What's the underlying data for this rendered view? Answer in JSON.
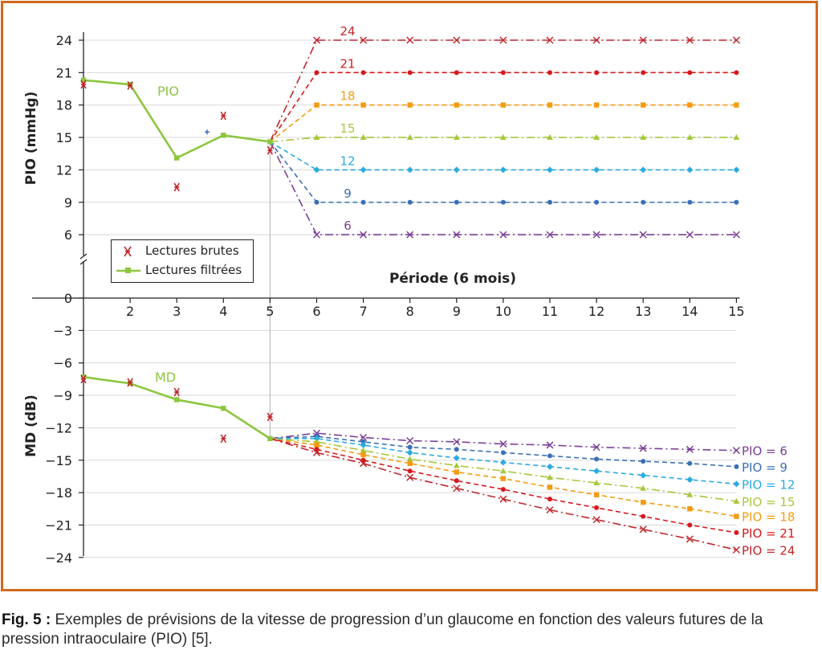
{
  "caption": {
    "label": "Fig. 5 :",
    "text": " Exemples de prévisions de la vitesse de progression d’un glaucome en fonction des valeurs futures de la pression intraoculaire (PIO) [5]."
  },
  "colors": {
    "frame": "#d2691e",
    "filtered": "#8dc63f",
    "raw": "#c1272d",
    "pio24": "#c1272d",
    "pio21": "#d7191c",
    "pio18": "#f39c12",
    "pio15": "#a6c83b",
    "pio12": "#29abe2",
    "pio9": "#3a6fb7",
    "pio6": "#7b3f98"
  },
  "legend": {
    "raw_label": "Lectures brutes",
    "filtered_label": "Lectures filtrées"
  },
  "chart_data": [
    {
      "type": "line",
      "panel": "top",
      "ylabel": "PIO (mmHg)",
      "xlabel": "Période (6 mois)",
      "series_label": "PIO",
      "y_ticks": [
        6,
        9,
        12,
        15,
        18,
        21,
        24
      ],
      "ylim": [
        3,
        24.5
      ],
      "x_ticks": [
        2,
        3,
        4,
        5,
        6,
        7,
        8,
        9,
        10,
        11,
        12,
        13,
        14,
        15
      ],
      "xlim": [
        1,
        15
      ],
      "filtered": {
        "x": [
          1,
          2,
          3,
          4,
          5
        ],
        "y": [
          20.3,
          19.9,
          13.1,
          15.2,
          14.6
        ]
      },
      "raw": {
        "x": [
          1,
          2,
          3,
          4,
          5
        ],
        "y": [
          19.9,
          19.8,
          10.4,
          17.0,
          13.8
        ]
      },
      "extra_marker": {
        "x": 3.65,
        "y": 15.5
      },
      "scenarios": [
        {
          "name": "24",
          "value": 24,
          "marker": "x",
          "dash": "dashdot"
        },
        {
          "name": "21",
          "value": 21,
          "marker": "dot",
          "dash": "dash"
        },
        {
          "name": "18",
          "value": 18,
          "marker": "square",
          "dash": "dash"
        },
        {
          "name": "15",
          "value": 15,
          "marker": "triangle",
          "dash": "dashdot"
        },
        {
          "name": "12",
          "value": 12,
          "marker": "diamond",
          "dash": "dash"
        },
        {
          "name": "9",
          "value": 9,
          "marker": "dot",
          "dash": "dash"
        },
        {
          "name": "6",
          "value": 6,
          "marker": "x",
          "dash": "dashdot"
        }
      ]
    },
    {
      "type": "line",
      "panel": "bottom",
      "ylabel": "MD (dB)",
      "series_label": "MD",
      "y_ticks": [
        0,
        -3,
        -6,
        -9,
        -12,
        -15,
        -18,
        -21,
        -24
      ],
      "ylim": [
        -24,
        0
      ],
      "x_ticks": [
        2,
        3,
        4,
        5,
        6,
        7,
        8,
        9,
        10,
        11,
        12,
        13,
        14,
        15
      ],
      "xlim": [
        1,
        15
      ],
      "filtered": {
        "x": [
          1,
          2,
          3,
          4,
          5
        ],
        "y": [
          -7.3,
          -7.9,
          -9.4,
          -10.2,
          -13.0
        ]
      },
      "raw": {
        "x": [
          1,
          2,
          3,
          4,
          5
        ],
        "y": [
          -7.5,
          -7.8,
          -8.7,
          -13.0,
          -11.0
        ]
      },
      "scenarios": [
        {
          "name": "PIO = 6",
          "marker": "x",
          "dash": "dashdot",
          "y": [
            -13.0,
            -12.5,
            -12.9,
            -13.2,
            -13.3,
            -13.5,
            -13.6,
            -13.8,
            -13.9,
            -14.0,
            -14.1
          ]
        },
        {
          "name": "PIO = 9",
          "marker": "dot",
          "dash": "dash",
          "y": [
            -13.0,
            -12.8,
            -13.3,
            -13.8,
            -14.0,
            -14.3,
            -14.6,
            -14.9,
            -15.1,
            -15.3,
            -15.6
          ]
        },
        {
          "name": "PIO = 12",
          "marker": "diamond",
          "dash": "dash",
          "y": [
            -13.0,
            -13.0,
            -13.6,
            -14.3,
            -14.8,
            -15.2,
            -15.6,
            -16.0,
            -16.4,
            -16.8,
            -17.2
          ]
        },
        {
          "name": "PIO = 15",
          "marker": "triangle",
          "dash": "dashdot",
          "y": [
            -13.0,
            -13.3,
            -14.1,
            -14.9,
            -15.5,
            -16.0,
            -16.6,
            -17.1,
            -17.6,
            -18.2,
            -18.8
          ]
        },
        {
          "name": "PIO = 18",
          "marker": "square",
          "dash": "dash",
          "y": [
            -13.0,
            -13.6,
            -14.5,
            -15.3,
            -16.1,
            -16.7,
            -17.5,
            -18.2,
            -18.9,
            -19.5,
            -20.2
          ]
        },
        {
          "name": "PIO = 21",
          "marker": "dot",
          "dash": "dash",
          "y": [
            -13.0,
            -14.0,
            -15.0,
            -16.0,
            -16.9,
            -17.7,
            -18.6,
            -19.4,
            -20.2,
            -21.0,
            -21.7
          ]
        },
        {
          "name": "PIO = 24",
          "marker": "x",
          "dash": "dashdot",
          "y": [
            -13.0,
            -14.3,
            -15.3,
            -16.6,
            -17.6,
            -18.6,
            -19.6,
            -20.5,
            -21.4,
            -22.3,
            -23.3
          ]
        }
      ],
      "scenario_x": [
        5,
        6,
        7,
        8,
        9,
        10,
        11,
        12,
        13,
        14,
        15
      ]
    }
  ]
}
